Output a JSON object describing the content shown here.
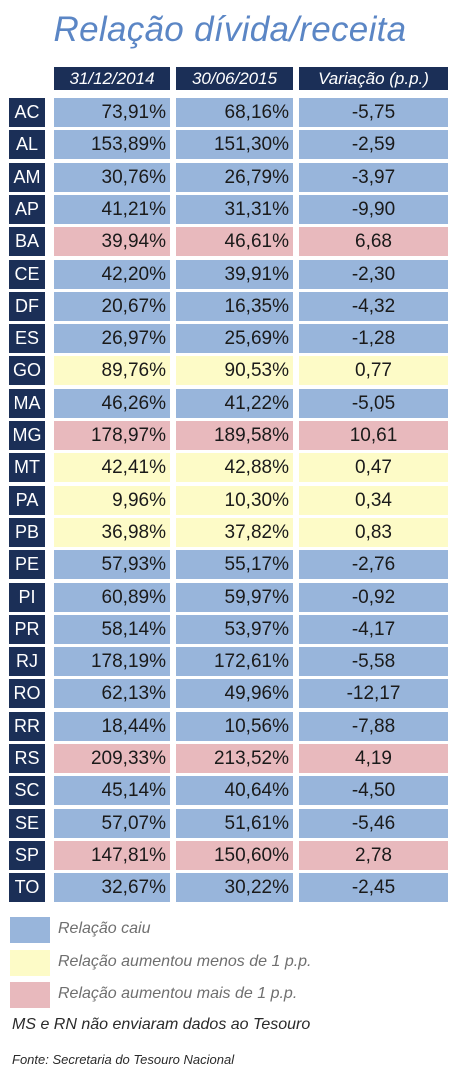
{
  "title": "Relação dívida/receita",
  "colors": {
    "caiu": "#98b5db",
    "menos1": "#fdfbc7",
    "mais1": "#e8b9bd",
    "header": "#1b2f57"
  },
  "chart_data": {
    "type": "table",
    "columns": [
      "31/12/2014",
      "30/06/2015",
      "Variação (p.p.)"
    ],
    "rows": [
      {
        "uf": "AC",
        "v2014": "73,91%",
        "v2015": "68,16%",
        "var": "-5,75",
        "cat": "caiu"
      },
      {
        "uf": "AL",
        "v2014": "153,89%",
        "v2015": "151,30%",
        "var": "-2,59",
        "cat": "caiu"
      },
      {
        "uf": "AM",
        "v2014": "30,76%",
        "v2015": "26,79%",
        "var": "-3,97",
        "cat": "caiu"
      },
      {
        "uf": "AP",
        "v2014": "41,21%",
        "v2015": "31,31%",
        "var": "-9,90",
        "cat": "caiu"
      },
      {
        "uf": "BA",
        "v2014": "39,94%",
        "v2015": "46,61%",
        "var": "6,68",
        "cat": "mais1"
      },
      {
        "uf": "CE",
        "v2014": "42,20%",
        "v2015": "39,91%",
        "var": "-2,30",
        "cat": "caiu"
      },
      {
        "uf": "DF",
        "v2014": "20,67%",
        "v2015": "16,35%",
        "var": "-4,32",
        "cat": "caiu"
      },
      {
        "uf": "ES",
        "v2014": "26,97%",
        "v2015": "25,69%",
        "var": "-1,28",
        "cat": "caiu"
      },
      {
        "uf": "GO",
        "v2014": "89,76%",
        "v2015": "90,53%",
        "var": "0,77",
        "cat": "menos1"
      },
      {
        "uf": "MA",
        "v2014": "46,26%",
        "v2015": "41,22%",
        "var": "-5,05",
        "cat": "caiu"
      },
      {
        "uf": "MG",
        "v2014": "178,97%",
        "v2015": "189,58%",
        "var": "10,61",
        "cat": "mais1"
      },
      {
        "uf": "MT",
        "v2014": "42,41%",
        "v2015": "42,88%",
        "var": "0,47",
        "cat": "menos1"
      },
      {
        "uf": "PA",
        "v2014": "9,96%",
        "v2015": "10,30%",
        "var": "0,34",
        "cat": "menos1"
      },
      {
        "uf": "PB",
        "v2014": "36,98%",
        "v2015": "37,82%",
        "var": "0,83",
        "cat": "menos1"
      },
      {
        "uf": "PE",
        "v2014": "57,93%",
        "v2015": "55,17%",
        "var": "-2,76",
        "cat": "caiu"
      },
      {
        "uf": "PI",
        "v2014": "60,89%",
        "v2015": "59,97%",
        "var": "-0,92",
        "cat": "caiu"
      },
      {
        "uf": "PR",
        "v2014": "58,14%",
        "v2015": "53,97%",
        "var": "-4,17",
        "cat": "caiu"
      },
      {
        "uf": "RJ",
        "v2014": "178,19%",
        "v2015": "172,61%",
        "var": "-5,58",
        "cat": "caiu"
      },
      {
        "uf": "RO",
        "v2014": "62,13%",
        "v2015": "49,96%",
        "var": "-12,17",
        "cat": "caiu"
      },
      {
        "uf": "RR",
        "v2014": "18,44%",
        "v2015": "10,56%",
        "var": "-7,88",
        "cat": "caiu"
      },
      {
        "uf": "RS",
        "v2014": "209,33%",
        "v2015": "213,52%",
        "var": "4,19",
        "cat": "mais1"
      },
      {
        "uf": "SC",
        "v2014": "45,14%",
        "v2015": "40,64%",
        "var": "-4,50",
        "cat": "caiu"
      },
      {
        "uf": "SE",
        "v2014": "57,07%",
        "v2015": "51,61%",
        "var": "-5,46",
        "cat": "caiu"
      },
      {
        "uf": "SP",
        "v2014": "147,81%",
        "v2015": "150,60%",
        "var": "2,78",
        "cat": "mais1"
      },
      {
        "uf": "TO",
        "v2014": "32,67%",
        "v2015": "30,22%",
        "var": "-2,45",
        "cat": "caiu"
      }
    ]
  },
  "legend": [
    {
      "label": "Relação caiu",
      "cat": "caiu"
    },
    {
      "label": "Relação aumentou menos de 1 p.p.",
      "cat": "menos1"
    },
    {
      "label": "Relação aumentou mais de 1 p.p.",
      "cat": "mais1"
    }
  ],
  "note": "MS e RN não enviaram dados ao Tesouro",
  "source": "Fonte: Secretaria do Tesouro Nacional"
}
